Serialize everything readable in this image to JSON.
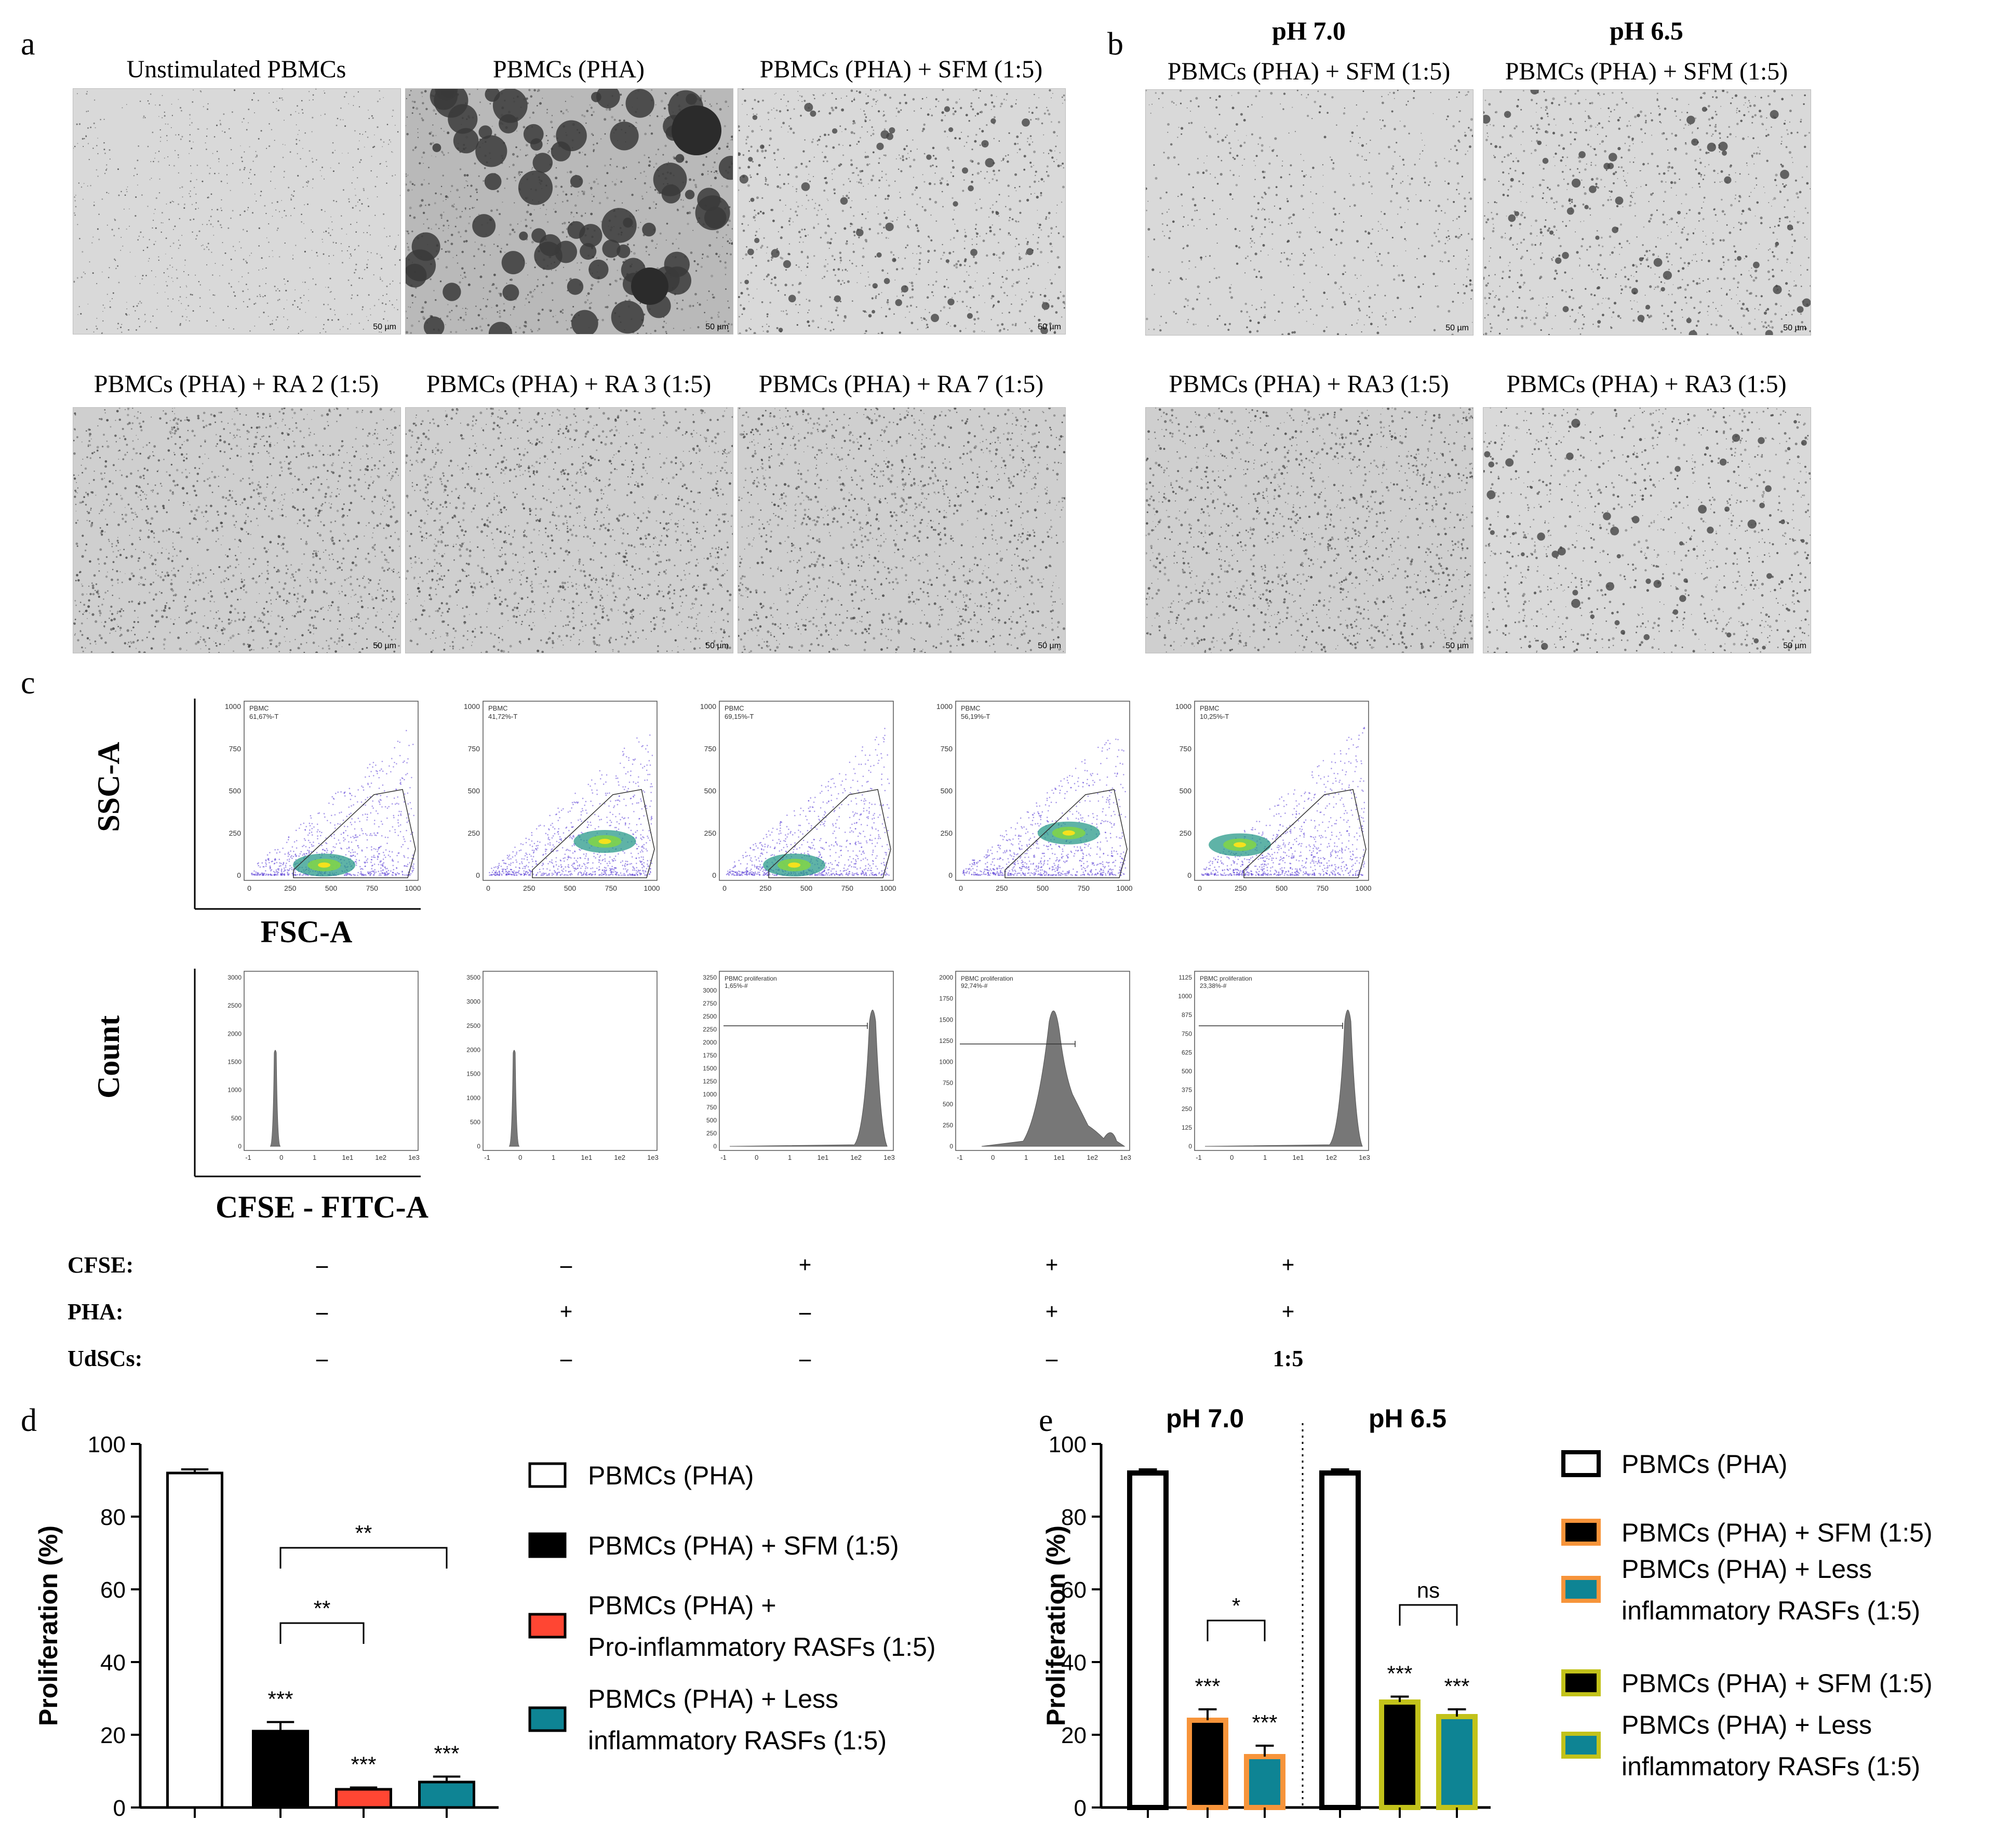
{
  "panel_a": {
    "label": "a",
    "captions": [
      "Unstimulated PBMCs",
      "PBMCs (PHA)",
      "PBMCs (PHA) + SFM (1:5)",
      "PBMCs (PHA) + RA 2 (1:5)",
      "PBMCs (PHA) + RA 3 (1:5)",
      "PBMCs (PHA) + RA 7 (1:5)"
    ],
    "scale_bar": "50 µm"
  },
  "panel_b": {
    "label": "b",
    "ph_headers": [
      "pH 7.0",
      "pH 6.5"
    ],
    "captions": [
      "PBMCs (PHA) + SFM (1:5)",
      "PBMCs (PHA) + SFM (1:5)",
      "PBMCs (PHA) + RA3 (1:5)",
      "PBMCs (PHA) + RA3 (1:5)"
    ],
    "scale_bar": "50 µm"
  },
  "panel_c": {
    "label": "c",
    "scatter_ylabel": "SSC-A",
    "scatter_xlabel": "FSC-A",
    "hist_ylabel": "Count",
    "hist_xlabel": "CFSE - FITC-A",
    "scatter_gates": [
      {
        "name": "PBMC",
        "pct": "61,67%-T"
      },
      {
        "name": "PBMC",
        "pct": "41,72%-T"
      },
      {
        "name": "PBMC",
        "pct": "69,15%-T"
      },
      {
        "name": "PBMC",
        "pct": "56,19%-T"
      },
      {
        "name": "PBMC",
        "pct": "10,25%-T"
      }
    ],
    "scatter_xticks": [
      "0",
      "250",
      "500",
      "750",
      "1000"
    ],
    "scatter_yticks": [
      "0",
      "250",
      "500",
      "750",
      "1000"
    ],
    "hist_xticks": [
      "-1",
      "0",
      "1",
      "1e1",
      "1e2",
      "1e3"
    ],
    "hist_gates": [
      {
        "name": "",
        "pct": ""
      },
      {
        "name": "",
        "pct": ""
      },
      {
        "name": "PBMC proliferation",
        "pct": "1,65%-#"
      },
      {
        "name": "PBMC proliferation",
        "pct": "92,74%-#"
      },
      {
        "name": "PBMC proliferation",
        "pct": "23,38%-#"
      }
    ],
    "hist_yticks": [
      [
        "0",
        "500",
        "1000",
        "1500",
        "2000",
        "2500",
        "3000"
      ],
      [
        "0",
        "500",
        "1000",
        "1500",
        "2000",
        "2500",
        "3000",
        "3500"
      ],
      [
        "0",
        "250",
        "500",
        "750",
        "1000",
        "1250",
        "1500",
        "1750",
        "2000",
        "2250",
        "2500",
        "2750",
        "3000",
        "3250"
      ],
      [
        "0",
        "250",
        "500",
        "750",
        "1000",
        "1250",
        "1500",
        "1750",
        "2000"
      ],
      [
        "0",
        "125",
        "250",
        "375",
        "500",
        "625",
        "750",
        "875",
        "1000",
        "1125"
      ]
    ],
    "conditions": {
      "rows": [
        "CFSE:",
        "PHA:",
        "UdSCs:"
      ],
      "values": [
        [
          "–",
          "–",
          "+",
          "+",
          "+"
        ],
        [
          "–",
          "+",
          "–",
          "+",
          "+"
        ],
        [
          "–",
          "–",
          "–",
          "–",
          "1:5"
        ]
      ]
    }
  },
  "chart_data": [
    {
      "panel": "d",
      "type": "bar",
      "ylabel": "Proliferation (%)",
      "ylim": [
        0,
        100
      ],
      "yticks": [
        0,
        20,
        40,
        60,
        80,
        100
      ],
      "categories": [
        "PBMCs (PHA)",
        "PBMCs (PHA) + SFM (1:5)",
        "PBMCs (PHA) + Pro-inflammatory RASFs (1:5)",
        "PBMCs (PHA) + Less inflammatory RASFs (1:5)"
      ],
      "values": [
        92,
        21,
        5,
        7
      ],
      "errors": [
        1,
        2.5,
        0.5,
        1.5
      ],
      "colors": [
        "#ffffff",
        "#000000",
        "#ff4633",
        "#0e8494"
      ],
      "annotations": [
        "",
        "***",
        "***",
        "***"
      ],
      "brackets": [
        {
          "from": 1,
          "to": 2,
          "label": "**"
        },
        {
          "from": 1,
          "to": 3,
          "label": "**"
        }
      ],
      "legend": [
        "PBMCs (PHA)",
        "PBMCs (PHA) + SFM (1:5)",
        "PBMCs (PHA) +\nPro-inflammatory RASFs (1:5)",
        "PBMCs (PHA) + Less\ninflammatory RASFs (1:5)"
      ]
    },
    {
      "panel": "e",
      "type": "bar",
      "ylabel": "Proliferation (%)",
      "ylim": [
        0,
        100
      ],
      "yticks": [
        0,
        20,
        40,
        60,
        80,
        100
      ],
      "groups": [
        "pH 7.0",
        "pH 6.5"
      ],
      "categories": [
        "PBMCs (PHA)",
        "PBMCs (PHA) + SFM (1:5)",
        "PBMCs (PHA) + Less inflammatory RASFs (1:5)",
        "PBMCs (PHA)",
        "PBMCs (PHA) + SFM (1:5)",
        "PBMCs (PHA) + Less inflammatory RASFs (1:5)"
      ],
      "values": [
        92,
        24,
        14,
        92,
        29,
        25
      ],
      "errors": [
        1,
        3,
        3,
        1,
        1.5,
        2
      ],
      "fills": [
        "#ffffff",
        "#000000",
        "#0e8494",
        "#ffffff",
        "#000000",
        "#0e8494"
      ],
      "borders": [
        "#000000",
        "#f7943a",
        "#f7943a",
        "#000000",
        "#c2c21a",
        "#c2c21a"
      ],
      "annotations": [
        "",
        "***",
        "***",
        "",
        "***",
        "***"
      ],
      "brackets": [
        {
          "from": 1,
          "to": 2,
          "label": "*"
        },
        {
          "from": 4,
          "to": 5,
          "label": "ns"
        }
      ],
      "legend": [
        "PBMCs (PHA)",
        "PBMCs (PHA) + SFM (1:5)",
        "PBMCs (PHA) + Less\ninflammatory RASFs (1:5)",
        "PBMCs (PHA) + SFM (1:5)",
        "PBMCs (PHA) + Less\ninflammatory RASFs (1:5)"
      ]
    }
  ],
  "panel_labels": {
    "d": "d",
    "e": "e"
  }
}
